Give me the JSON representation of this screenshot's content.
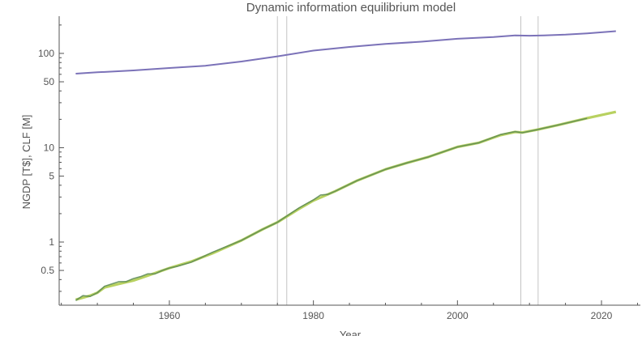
{
  "chart_data": {
    "type": "line",
    "title": "Dynamic information equilibrium model",
    "xlabel": "Year",
    "ylabel": "NGDP [T$], CLF [M]",
    "y_scale": "log",
    "xlim": [
      1944.7,
      2025.4
    ],
    "ylim": [
      0.214,
      248
    ],
    "x_ticks": [
      1960,
      1980,
      2000,
      2020
    ],
    "y_ticks": [
      0.5,
      1,
      5,
      10,
      50,
      100
    ],
    "y_tick_labels": [
      "0.5",
      "1",
      "5",
      "10",
      "50",
      "100"
    ],
    "grid": false,
    "vertical_lines": [
      1975.0,
      1976.3,
      2008.8,
      2011.2
    ],
    "colors": {
      "clf": "#7b72b8",
      "ngdp_data": "#5a8a55",
      "ngdp_model": "#b8d160",
      "vline": "#c4c4c4",
      "axis": "#555555"
    },
    "series": [
      {
        "key": "ngdp_model",
        "x": [
          1947,
          1949,
          1950,
          1951,
          1953,
          1955,
          1957,
          1960,
          1963,
          1966,
          1970,
          1973,
          1975,
          1978,
          1980,
          1983,
          1986,
          1990,
          1993,
          1996,
          2000,
          2003,
          2006,
          2008,
          2009,
          2011,
          2014,
          2018,
          2022
        ],
        "y": [
          0.245,
          0.27,
          0.29,
          0.33,
          0.36,
          0.39,
          0.44,
          0.53,
          0.62,
          0.76,
          1.04,
          1.37,
          1.62,
          2.25,
          2.75,
          3.45,
          4.45,
          5.9,
          6.9,
          8.0,
          10.2,
          11.3,
          13.6,
          14.7,
          14.5,
          15.5,
          17.4,
          20.6,
          24.0
        ]
      },
      {
        "key": "ngdp_data",
        "x": [
          1947,
          1948,
          1949,
          1950,
          1951,
          1952,
          1953,
          1954,
          1955,
          1956,
          1957,
          1958,
          1959,
          1960,
          1961,
          1963,
          1966,
          1970,
          1973,
          1975,
          1978,
          1980,
          1981,
          1982,
          1983,
          1986,
          1990,
          1993,
          1996,
          2000,
          2003,
          2006,
          2008,
          2009,
          2011,
          2014,
          2018
        ],
        "y": [
          0.24,
          0.27,
          0.265,
          0.29,
          0.34,
          0.36,
          0.38,
          0.38,
          0.41,
          0.43,
          0.46,
          0.46,
          0.5,
          0.53,
          0.55,
          0.61,
          0.78,
          1.04,
          1.37,
          1.62,
          2.3,
          2.8,
          3.15,
          3.2,
          3.45,
          4.45,
          5.9,
          6.9,
          8.0,
          10.2,
          11.3,
          13.8,
          14.8,
          14.4,
          15.5,
          17.4,
          20.5
        ]
      },
      {
        "key": "clf",
        "x": [
          1947,
          1950,
          1955,
          1960,
          1965,
          1970,
          1975,
          1980,
          1985,
          1990,
          1995,
          2000,
          2005,
          2008,
          2010,
          2012,
          2015,
          2018,
          2022
        ],
        "y": [
          61,
          63,
          66,
          70,
          74,
          82,
          93,
          107,
          117,
          126,
          133,
          143,
          149,
          155,
          154,
          155,
          158,
          163,
          172
        ]
      }
    ]
  }
}
